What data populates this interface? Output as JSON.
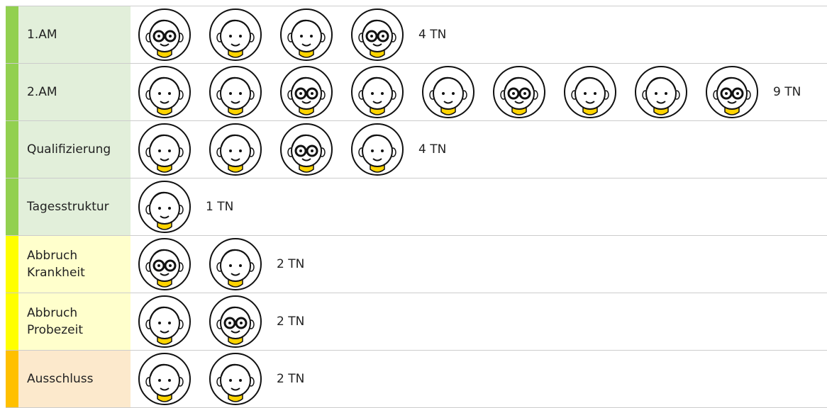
{
  "rows": [
    {
      "label": "1.AM",
      "count": "4 TN"
    },
    {
      "label": "2.AM",
      "count": "9 TN"
    },
    {
      "label": "Qualifizierung",
      "count": "4 TN"
    },
    {
      "label": "Tagesstruktur",
      "count": "1 TN"
    },
    {
      "label": "Abbruch Krankheit",
      "count": "2 TN"
    },
    {
      "label": "Abbruch Probezeit",
      "count": "2 TN"
    },
    {
      "label": "Ausschluss",
      "count": "2 TN"
    }
  ]
}
